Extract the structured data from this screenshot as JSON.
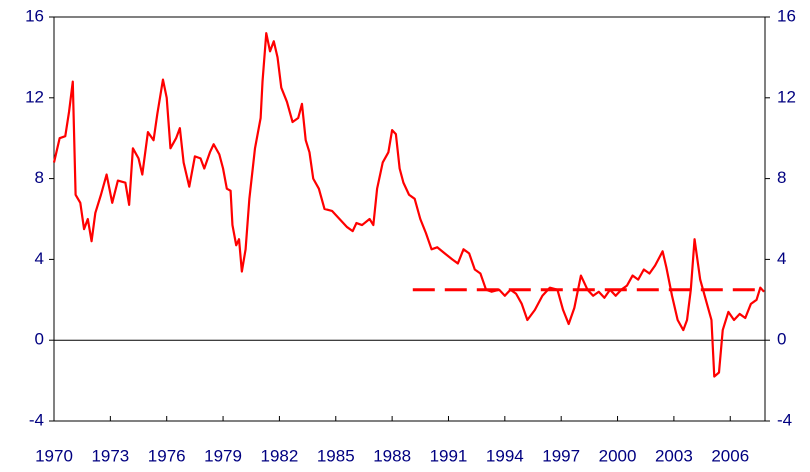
{
  "chart_data": {
    "type": "line",
    "series": [
      {
        "color": "#ff0000",
        "x": [
          1970.0,
          1970.3,
          1970.6,
          1970.8,
          1971.0,
          1971.15,
          1971.4,
          1971.6,
          1971.8,
          1972.0,
          1972.2,
          1972.5,
          1972.8,
          1973.1,
          1973.4,
          1973.8,
          1974.0,
          1974.2,
          1974.5,
          1974.7,
          1975.0,
          1975.3,
          1975.5,
          1975.8,
          1976.0,
          1976.2,
          1976.5,
          1976.7,
          1976.9,
          1977.2,
          1977.5,
          1977.8,
          1978.0,
          1978.3,
          1978.5,
          1978.8,
          1979.0,
          1979.2,
          1979.4,
          1979.5,
          1979.7,
          1979.85,
          1980.0,
          1980.2,
          1980.4,
          1980.7,
          1981.0,
          1981.1,
          1981.3,
          1981.5,
          1981.7,
          1981.9,
          1982.1,
          1982.4,
          1982.7,
          1983.0,
          1983.2,
          1983.4,
          1983.6,
          1983.8,
          1984.1,
          1984.4,
          1984.8,
          1985.2,
          1985.6,
          1985.9,
          1986.1,
          1986.4,
          1986.8,
          1987.0,
          1987.2,
          1987.5,
          1987.8,
          1988.0,
          1988.2,
          1988.4,
          1988.6,
          1988.9,
          1989.2,
          1989.5,
          1989.8,
          1990.1,
          1990.4,
          1990.8,
          1991.2,
          1991.5,
          1991.8,
          1992.1,
          1992.4,
          1992.7,
          1993.0,
          1993.3,
          1993.7,
          1994.0,
          1994.3,
          1994.6,
          1994.9,
          1995.2,
          1995.6,
          1996.0,
          1996.4,
          1996.8,
          1997.1,
          1997.4,
          1997.7,
          1998.05,
          1998.4,
          1998.7,
          1999.0,
          1999.3,
          1999.6,
          1999.9,
          2000.2,
          2000.5,
          2000.8,
          2001.1,
          2001.4,
          2001.7,
          2002.0,
          2002.4,
          2002.6,
          2002.9,
          2003.2,
          2003.5,
          2003.7,
          2003.9,
          2004.1,
          2004.4,
          2004.7,
          2005.0,
          2005.15,
          2005.4,
          2005.6,
          2005.9,
          2006.2,
          2006.5,
          2006.8,
          2007.1,
          2007.4,
          2007.6,
          2007.8
        ],
        "values": [
          8.8,
          10.0,
          10.1,
          11.3,
          12.8,
          7.2,
          6.8,
          5.5,
          6.0,
          4.9,
          6.3,
          7.2,
          8.2,
          6.8,
          7.9,
          7.8,
          6.7,
          9.5,
          9.0,
          8.2,
          10.3,
          9.9,
          11.2,
          12.9,
          12.0,
          9.5,
          10.0,
          10.5,
          8.8,
          7.6,
          9.1,
          9.0,
          8.5,
          9.3,
          9.7,
          9.2,
          8.5,
          7.5,
          7.4,
          5.7,
          4.7,
          5.0,
          3.4,
          4.5,
          7.0,
          9.5,
          11.0,
          12.8,
          15.2,
          14.3,
          14.8,
          14.0,
          12.5,
          11.8,
          10.8,
          11.0,
          11.7,
          9.9,
          9.3,
          8.0,
          7.5,
          6.5,
          6.4,
          6.0,
          5.6,
          5.4,
          5.8,
          5.7,
          6.0,
          5.7,
          7.5,
          8.8,
          9.3,
          10.4,
          10.2,
          8.5,
          7.8,
          7.2,
          7.0,
          6.0,
          5.3,
          4.5,
          4.6,
          4.3,
          4.0,
          3.8,
          4.5,
          4.3,
          3.5,
          3.3,
          2.5,
          2.4,
          2.5,
          2.2,
          2.5,
          2.3,
          1.8,
          1.0,
          1.5,
          2.2,
          2.6,
          2.5,
          1.5,
          0.8,
          1.6,
          3.2,
          2.5,
          2.2,
          2.4,
          2.1,
          2.5,
          2.2,
          2.5,
          2.7,
          3.2,
          3.0,
          3.5,
          3.3,
          3.7,
          4.4,
          3.6,
          2.2,
          1.0,
          0.5,
          1.0,
          2.5,
          5.0,
          3.0,
          2.0,
          1.0,
          -1.8,
          -1.6,
          0.5,
          1.4,
          1.0,
          1.3,
          1.1,
          1.8,
          2.0,
          2.6,
          2.4
        ]
      },
      {
        "color": "#ff0000",
        "dashed": true,
        "x": [
          1989.1,
          2007.8
        ],
        "values": [
          2.5,
          2.5
        ]
      }
    ],
    "xlim": [
      1970,
      2007.85
    ],
    "xticks": [
      1970,
      1973,
      1976,
      1979,
      1982,
      1985,
      1988,
      1991,
      1994,
      1997,
      2000,
      2003,
      2006
    ],
    "ylim": [
      -4,
      16
    ],
    "yticks": [
      -4,
      0,
      4,
      8,
      12,
      16
    ],
    "y2lim": [
      -4,
      16
    ],
    "y2ticks": [
      -4,
      0,
      4,
      8,
      12,
      16
    ]
  }
}
